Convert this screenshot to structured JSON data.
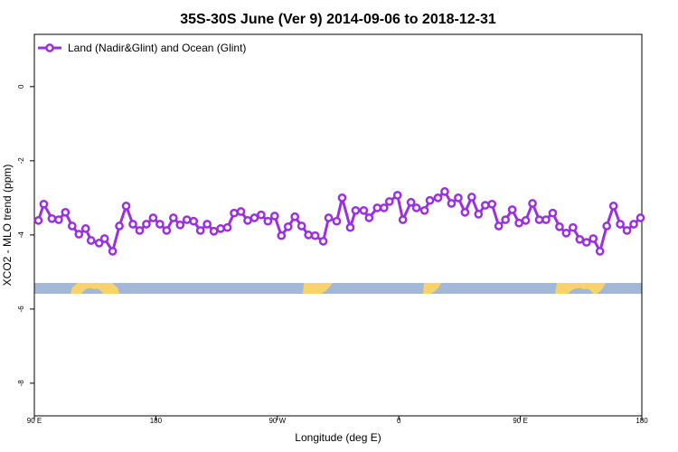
{
  "chart_data": {
    "type": "line",
    "title": "35S-30S June (Ver 9)   2014-09-06 to 2018-12-31",
    "xlabel": "Longitude (deg E)",
    "ylabel": "XCO2 - MLO trend (ppm)",
    "xlim": [
      90,
      540
    ],
    "ylim": [
      -8.88,
      1.41
    ],
    "xticks": [
      {
        "value": 90,
        "label": "90 E"
      },
      180,
      {
        "value": 270,
        "label": "90 W"
      },
      {
        "value": 360,
        "label": "0"
      },
      {
        "value": 450,
        "label": "90 E"
      },
      {
        "value": 540,
        "label": "180"
      }
    ],
    "yticks": [
      0,
      -2,
      -4,
      -6,
      -8
    ],
    "legend": "top-left",
    "series": [
      {
        "name": "Land (Nadir&Glint) and Ocean (Glint)",
        "color": "#9b30e0",
        "x": [
          93,
          97,
          103,
          108,
          113,
          118,
          123,
          128,
          132,
          138,
          142,
          148,
          153,
          158,
          163,
          168,
          173,
          178,
          183,
          188,
          193,
          198,
          203,
          208,
          213,
          218,
          223,
          228,
          233,
          238,
          243,
          248,
          253,
          258,
          263,
          268,
          273,
          278,
          283,
          288,
          293,
          298,
          304,
          308,
          314,
          318,
          324,
          328,
          334,
          338,
          344,
          349,
          353,
          359,
          363,
          369,
          373,
          379,
          383,
          389,
          394,
          399,
          404,
          409,
          414,
          419,
          424,
          429,
          434,
          439,
          444,
          449,
          454,
          459,
          464,
          469,
          474,
          479,
          484,
          489,
          494,
          499,
          504,
          509,
          514,
          519,
          524,
          529,
          534,
          539
        ],
        "values": [
          -3.61,
          -3.17,
          -3.56,
          -3.59,
          -3.39,
          -3.76,
          -3.98,
          -3.83,
          -4.15,
          -4.22,
          -4.1,
          -4.44,
          -3.76,
          -3.22,
          -3.71,
          -3.88,
          -3.71,
          -3.54,
          -3.71,
          -3.88,
          -3.54,
          -3.73,
          -3.59,
          -3.63,
          -3.88,
          -3.71,
          -3.9,
          -3.83,
          -3.8,
          -3.41,
          -3.37,
          -3.61,
          -3.54,
          -3.46,
          -3.63,
          -3.49,
          -4.02,
          -3.78,
          -3.51,
          -3.76,
          -4.0,
          -4.02,
          -4.17,
          -3.54,
          -3.63,
          -3.0,
          -3.8,
          -3.34,
          -3.34,
          -3.54,
          -3.27,
          -3.27,
          -3.1,
          -2.93,
          -3.59,
          -3.12,
          -3.27,
          -3.34,
          -3.07,
          -3.0,
          -2.83,
          -3.15,
          -3.0,
          -3.39,
          -2.98,
          -3.44,
          -3.2,
          -3.17,
          -3.76,
          -3.59,
          -3.32,
          -3.68,
          -3.61,
          -3.15,
          -3.59,
          -3.59,
          -3.41,
          -3.78,
          -3.95,
          -3.8,
          -4.12,
          -4.2,
          -4.1,
          -4.44,
          -3.76,
          -3.22,
          -3.71,
          -3.88,
          -3.71,
          -3.54
        ]
      }
    ]
  }
}
